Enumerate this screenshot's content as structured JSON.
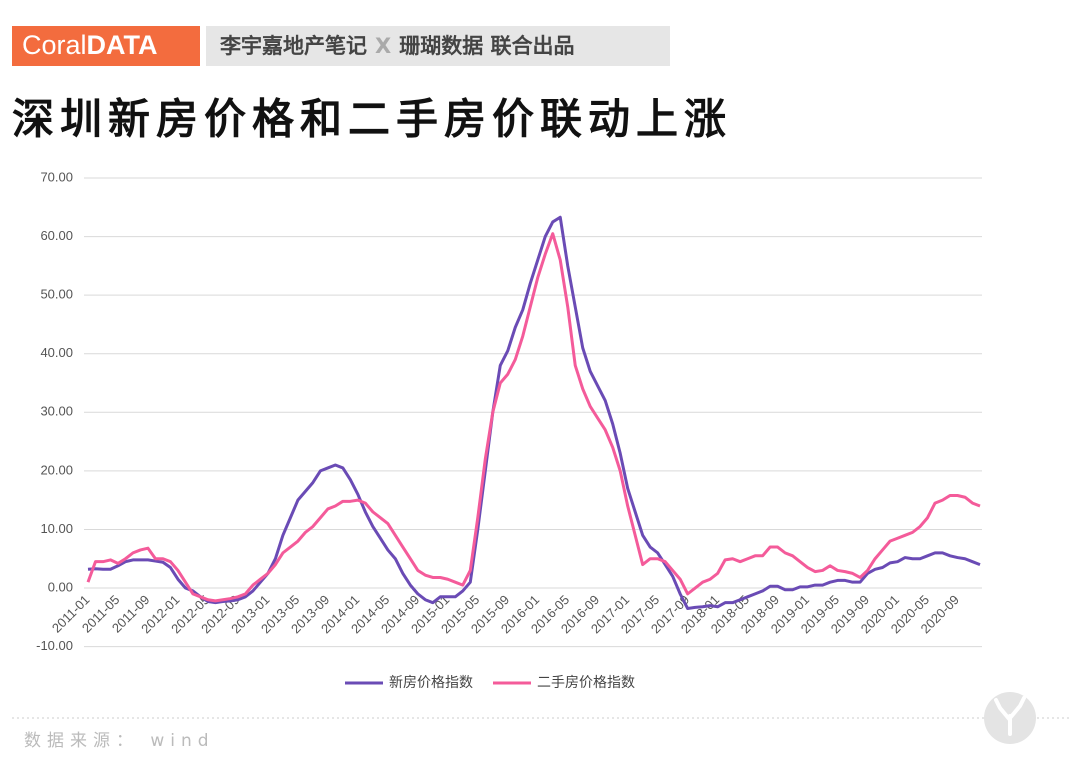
{
  "header": {
    "brand_light": "Coral",
    "brand_bold": "DATA",
    "partner": "李宇嘉地产笔记",
    "x": "X",
    "coral": "珊瑚数据 联合出品"
  },
  "chart_data": {
    "type": "line",
    "title": "深圳新房价格和二手房价联动上涨",
    "categories": [
      "2011-01",
      null,
      null,
      null,
      "2011-05",
      null,
      null,
      null,
      "2011-09",
      null,
      null,
      null,
      "2012-01",
      null,
      null,
      null,
      "2012-05",
      null,
      null,
      null,
      "2012-09",
      null,
      null,
      null,
      "2013-01",
      null,
      null,
      null,
      "2013-05",
      null,
      null,
      null,
      "2013-09",
      null,
      null,
      null,
      "2014-01",
      null,
      null,
      null,
      "2014-05",
      null,
      null,
      null,
      "2014-09",
      null,
      null,
      null,
      "2015-01",
      null,
      null,
      null,
      "2015-05",
      null,
      null,
      null,
      "2015-09",
      null,
      null,
      null,
      "2016-01",
      null,
      null,
      null,
      "2016-05",
      null,
      null,
      null,
      "2016-09",
      null,
      null,
      null,
      "2017-01",
      null,
      null,
      null,
      "2017-05",
      null,
      null,
      null,
      "2017-09",
      null,
      null,
      null,
      "2018-01",
      null,
      null,
      null,
      "2018-05",
      null,
      null,
      null,
      "2018-09",
      null,
      null,
      null,
      "2019-01",
      null,
      null,
      null,
      "2019-05",
      null,
      null,
      null,
      "2019-09",
      null,
      null,
      null,
      "2020-01",
      null,
      null,
      null,
      "2020-05",
      null,
      null,
      null,
      "2020-09",
      null,
      null,
      null
    ],
    "series": [
      {
        "name": "新房价格指数",
        "color": "#6a4bb5",
        "values": [
          3.2,
          3.3,
          3.2,
          3.2,
          3.8,
          4.5,
          4.8,
          4.8,
          4.8,
          4.6,
          4.4,
          3.5,
          1.5,
          0,
          -0.5,
          -1.5,
          -2.3,
          -2.5,
          -2.3,
          -2.2,
          -2.0,
          -1.5,
          -0.5,
          1.0,
          2.5,
          5.0,
          9.0,
          12.0,
          15.0,
          16.5,
          18.0,
          20.0,
          20.5,
          21.0,
          20.5,
          18.5,
          16.0,
          13.0,
          10.5,
          8.5,
          6.5,
          5.0,
          2.5,
          0.5,
          -1.0,
          -2.0,
          -2.5,
          -1.5,
          -1.5,
          -1.5,
          -0.5,
          1.0,
          10.0,
          20.0,
          30.0,
          38.0,
          40.5,
          44.5,
          47.5,
          52.0,
          56.0,
          60.0,
          62.5,
          63.3,
          55.0,
          48.0,
          41.0,
          37.0,
          34.5,
          32.0,
          28.0,
          23.0,
          17.0,
          13.0,
          9.0,
          7.0,
          6.0,
          4.0,
          2.0,
          -1.0,
          -3.5,
          -3.3,
          -3.2,
          -3.0,
          -3.2,
          -2.5,
          -2.5,
          -2.0,
          -1.5,
          -1.0,
          -0.5,
          0.3,
          0.3,
          -0.3,
          -0.3,
          0.2,
          0.2,
          0.5,
          0.5,
          1.0,
          1.3,
          1.3,
          1.0,
          1.0,
          2.5,
          3.2,
          3.5,
          4.3,
          4.5,
          5.2,
          5.0,
          5.0,
          5.5,
          6.0,
          6.0,
          5.5,
          5.2,
          5.0,
          4.5,
          4.0
        ]
      },
      {
        "name": "二手房价格指数",
        "color": "#f45b9a",
        "values": [
          1.0,
          4.5,
          4.5,
          4.8,
          4.2,
          5.0,
          6.0,
          6.5,
          6.8,
          5.0,
          5.0,
          4.5,
          3.0,
          1.0,
          -1.0,
          -1.5,
          -2.0,
          -2.2,
          -2.0,
          -1.8,
          -1.5,
          -1.0,
          0.5,
          1.5,
          2.5,
          4.0,
          6.0,
          7.0,
          8.0,
          9.5,
          10.5,
          12.0,
          13.5,
          14.0,
          14.8,
          14.8,
          15.0,
          14.5,
          13.0,
          12.0,
          11.0,
          9.0,
          7.0,
          5.0,
          3.0,
          2.2,
          1.8,
          1.8,
          1.5,
          1.0,
          0.5,
          3.0,
          12.0,
          22.0,
          30.0,
          35.0,
          36.5,
          39.0,
          43.0,
          48.0,
          53.0,
          57.0,
          60.5,
          56.0,
          48.0,
          38.0,
          34.0,
          31.0,
          29.0,
          27.0,
          24.0,
          20.0,
          14.0,
          9.0,
          4.0,
          5.0,
          5.0,
          4.5,
          3.0,
          1.5,
          -1.0,
          0.0,
          1.0,
          1.5,
          2.5,
          4.8,
          5.0,
          4.5,
          5.0,
          5.5,
          5.5,
          7.0,
          7.0,
          6.0,
          5.5,
          4.5,
          3.5,
          2.8,
          3.0,
          3.8,
          3.0,
          2.8,
          2.5,
          1.8,
          3.0,
          5.0,
          6.5,
          8.0,
          8.5,
          9.0,
          9.5,
          10.5,
          12.0,
          14.5,
          15.0,
          15.8,
          15.8,
          15.5,
          14.5,
          14.0
        ]
      }
    ],
    "ylim": [
      -10,
      70
    ],
    "yticks": [
      {
        "value": -10,
        "label": "-10.00"
      },
      {
        "value": 0,
        "label": "0.00"
      },
      {
        "value": 10,
        "label": "10.00"
      },
      {
        "value": 20,
        "label": "20.00"
      },
      {
        "value": 30,
        "label": "30.00"
      },
      {
        "value": 40,
        "label": "40.00"
      },
      {
        "value": 50,
        "label": "50.00"
      },
      {
        "value": 60,
        "label": "60.00"
      },
      {
        "value": 70,
        "label": "70.00"
      }
    ],
    "grid": true
  },
  "source": "数据来源： wind"
}
